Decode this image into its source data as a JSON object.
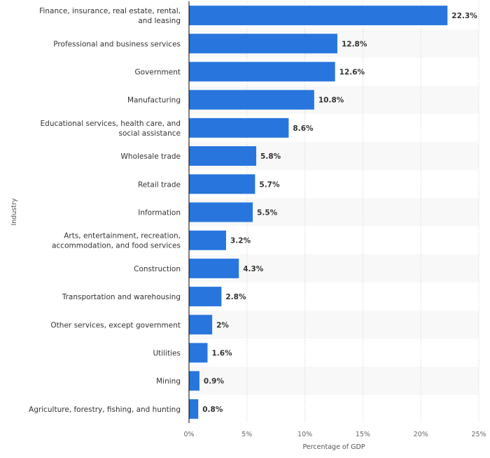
{
  "chart_data": {
    "type": "bar",
    "orientation": "horizontal",
    "categories": [
      "Finance, insurance, real estate, rental, and leasing",
      "Professional and business services",
      "Government",
      "Manufacturing",
      "Educational services, health care, and social assistance",
      "Wholesale trade",
      "Retail trade",
      "Information",
      "Arts, entertainment, recreation, accommodation, and food services",
      "Construction",
      "Transportation and warehousing",
      "Other services, except government",
      "Utilities",
      "Mining",
      "Agriculture, forestry, fishing, and hunting"
    ],
    "category_lines": [
      [
        "Finance, insurance, real estate, rental,",
        "and leasing"
      ],
      [
        "Professional and business services"
      ],
      [
        "Government"
      ],
      [
        "Manufacturing"
      ],
      [
        "Educational services, health care, and",
        "social assistance"
      ],
      [
        "Wholesale trade"
      ],
      [
        "Retail trade"
      ],
      [
        "Information"
      ],
      [
        "Arts, entertainment, recreation,",
        "accommodation, and food services"
      ],
      [
        "Construction"
      ],
      [
        "Transportation and warehousing"
      ],
      [
        "Other services, except government"
      ],
      [
        "Utilities"
      ],
      [
        "Mining"
      ],
      [
        "Agriculture, forestry, fishing, and hunting"
      ]
    ],
    "values": [
      22.3,
      12.8,
      12.6,
      10.8,
      8.6,
      5.8,
      5.7,
      5.5,
      3.2,
      4.3,
      2.8,
      2,
      1.6,
      0.9,
      0.8
    ],
    "data_labels": [
      "22.3%",
      "12.8%",
      "12.6%",
      "10.8%",
      "8.6%",
      "5.8%",
      "5.7%",
      "5.5%",
      "3.2%",
      "4.3%",
      "2.8%",
      "2%",
      "1.6%",
      "0.9%",
      "0.8%"
    ],
    "xlabel": "Percentage of GDP",
    "ylabel": "Industry",
    "xlim": [
      0,
      25
    ],
    "xticks": [
      0,
      5,
      10,
      15,
      20,
      25
    ],
    "xtick_labels": [
      "0%",
      "5%",
      "10%",
      "15%",
      "20%",
      "25%"
    ],
    "grid": "vertical dotted",
    "legend": "none",
    "colors": {
      "bar": "#2876dd",
      "band": "#f8f8f8",
      "grid": "#cccccc"
    }
  }
}
